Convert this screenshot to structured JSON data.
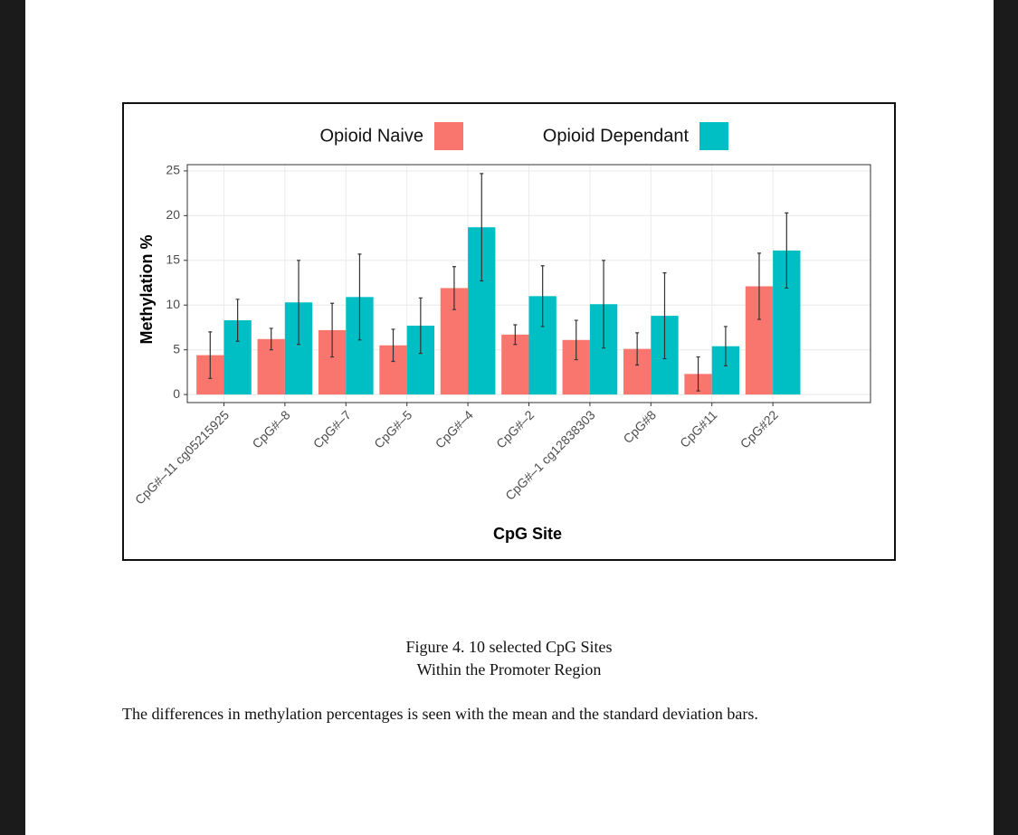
{
  "chart_data": {
    "type": "bar",
    "title": null,
    "x_label": "CpG Site",
    "y_label": "Methylation %",
    "categories": [
      "CpG#–11 cg05215925",
      "CpG#–8",
      "CpG#–7",
      "CpG#–5",
      "CpG#–4",
      "CpG#–2",
      "CpG#–1 cg12838303",
      "CpG#8",
      "CpG#11",
      "CpG#22"
    ],
    "series": [
      {
        "name": "Opioid Naive",
        "color": "#f8766d",
        "values": [
          4.4,
          6.2,
          7.2,
          5.5,
          11.9,
          6.7,
          6.1,
          5.1,
          2.3,
          12.1
        ],
        "errors": [
          2.6,
          1.2,
          3.0,
          1.8,
          2.4,
          1.1,
          2.2,
          1.8,
          1.9,
          3.7
        ]
      },
      {
        "name": "Opioid Dependant",
        "color": "#00bfc4",
        "values": [
          8.3,
          10.3,
          10.9,
          7.7,
          18.7,
          11.0,
          10.1,
          8.8,
          5.4,
          16.1
        ],
        "errors": [
          2.35,
          4.7,
          4.8,
          3.1,
          6.0,
          3.4,
          4.9,
          4.8,
          2.2,
          4.2
        ]
      }
    ],
    "ylim": [
      -0.9,
      25.7
    ],
    "yticks": [
      0,
      5,
      10,
      15,
      20,
      25
    ],
    "grid": true,
    "legend": "top"
  },
  "caption": [
    "Figure 4. 10 selected CpG Sites",
    "Within the Promoter Region"
  ],
  "paragraph": "The differences in methylation percentages is seen with the mean and the standard deviation bars."
}
